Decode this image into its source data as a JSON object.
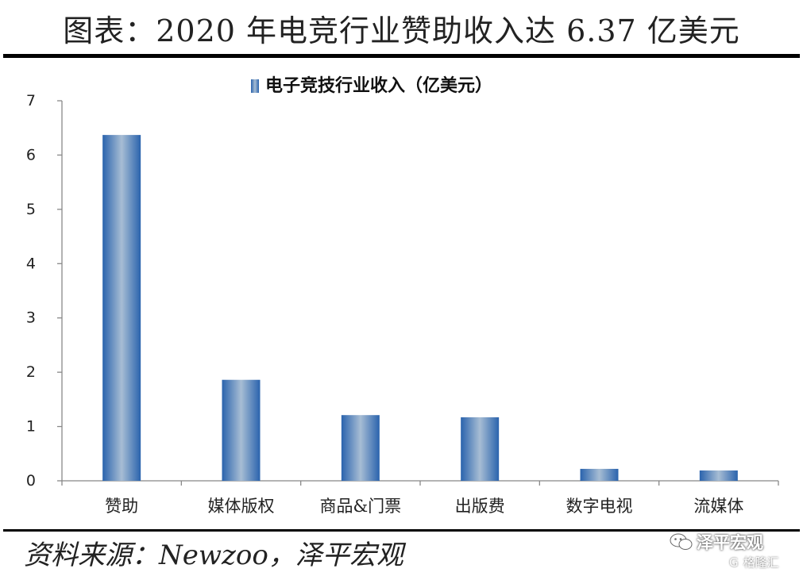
{
  "title": "图表：2020 年电竞行业赞助收入达 6.37 亿美元",
  "source": "资料来源：Newzoo，泽平宏观",
  "watermark": {
    "main": "泽平宏观",
    "sub": "格隆汇",
    "logo_letter": "G"
  },
  "chart_data": {
    "type": "bar",
    "title": "",
    "legend": [
      "电子竞技行业收入（亿美元）"
    ],
    "legend_position": "top-center",
    "categories": [
      "赞助",
      "媒体版权",
      "商品&门票",
      "出版费",
      "数字电视",
      "流媒体"
    ],
    "series": [
      {
        "name": "电子竞技行业收入（亿美元）",
        "values": [
          6.37,
          1.86,
          1.21,
          1.17,
          0.22,
          0.19
        ]
      }
    ],
    "xlabel": "",
    "ylabel": "",
    "ylim": [
      0,
      7
    ],
    "yticks": [
      "0",
      "1",
      "2",
      "3",
      "4",
      "5",
      "6",
      "7"
    ],
    "grid": false
  },
  "colors": {
    "bar_edge": "#2a63ad",
    "bar_center": "#a7bdd4",
    "axis": "#888888"
  }
}
